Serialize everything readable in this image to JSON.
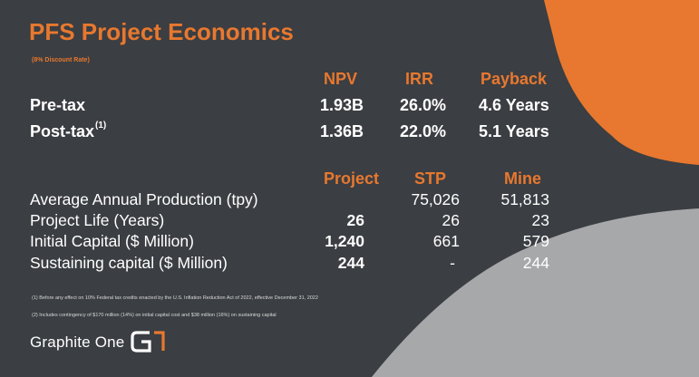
{
  "title": "PFS Project Economics",
  "subtitle": "(8% Discount Rate)",
  "economics": {
    "columns": [
      "NPV",
      "IRR",
      "Payback"
    ],
    "rows": [
      {
        "label": "Pre-tax",
        "sup": "",
        "npv": "1.93B",
        "irr": "26.0%",
        "payback": "4.6 Years"
      },
      {
        "label": "Post-tax",
        "sup": "(1)",
        "npv": "1.36B",
        "irr": "22.0%",
        "payback": "5.1 Years"
      }
    ]
  },
  "production": {
    "columns": [
      "Project",
      "STP",
      "Mine"
    ],
    "rows": [
      {
        "label": "Average Annual Production (tpy)",
        "project": "",
        "stp": "75,026",
        "mine": "51,813"
      },
      {
        "label": "Project Life (Years)",
        "project": "26",
        "stp": "26",
        "mine": "23"
      },
      {
        "label": "Initial Capital ($ Million)",
        "project": "1,240",
        "stp": "661",
        "mine": "579"
      },
      {
        "label": "Sustaining capital ($ Million)",
        "project": "244",
        "stp": "-",
        "mine": "244"
      }
    ]
  },
  "footnotes": [
    "(1) Before any effect on 10% Federal tax credits enacted by the U.S. Inflation Reduction Act of 2022, effective December 31, 2022",
    "(2) Includes contingency of $170 million (14%) on initial capital cost and $38 million (16%) on sustaining capital"
  ],
  "logo": {
    "text": "Graphite One",
    "icon": "graphite-one-logo-icon"
  },
  "colors": {
    "accent": "#e8782f",
    "background": "#3b3e42",
    "grey_shape": "#a7a8aa",
    "text": "#ffffff"
  }
}
